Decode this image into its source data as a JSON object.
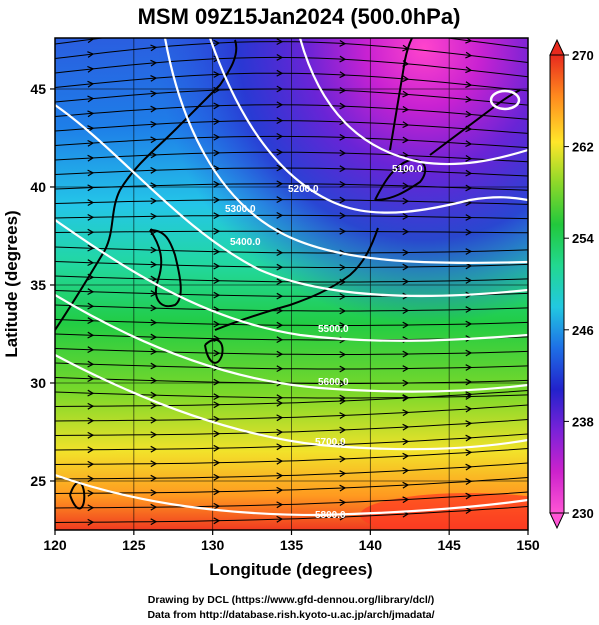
{
  "title": "MSM 09Z15Jan2024 (500.0hPa)",
  "x_axis": {
    "label": "Longitude (degrees)",
    "range": [
      120,
      150
    ],
    "ticks": [
      "120",
      "125",
      "130",
      "135",
      "140",
      "145",
      "150"
    ]
  },
  "y_axis": {
    "label": "Latitude  (degrees)",
    "range": [
      22.5,
      47.6
    ],
    "ticks": [
      "25",
      "30",
      "35",
      "40",
      "45"
    ]
  },
  "colorbar": {
    "range": [
      230,
      270
    ],
    "ticks": [
      "230",
      "238",
      "246",
      "254",
      "262",
      "270"
    ],
    "colors": [
      "#ff55d5",
      "#cc22cc",
      "#7a22d8",
      "#2222cc",
      "#1e6fe6",
      "#22c8e0",
      "#22d890",
      "#22c83c",
      "#8cd82a",
      "#ffe62a",
      "#ff8a1e",
      "#e82a1e"
    ]
  },
  "contours": {
    "color": "#ffffff",
    "labels": [
      "5100.0",
      "5200.0",
      "5300.0",
      "5400.0",
      "5500.0",
      "5600.0",
      "5700.0",
      "5800.0"
    ]
  },
  "grid": true,
  "credits": {
    "line1": "Drawing by DCL (https://www.gfd-dennou.org/library/dcl/)",
    "line2": "Data from http://database.rish.kyoto-u.ac.jp/arch/jmadata/"
  }
}
